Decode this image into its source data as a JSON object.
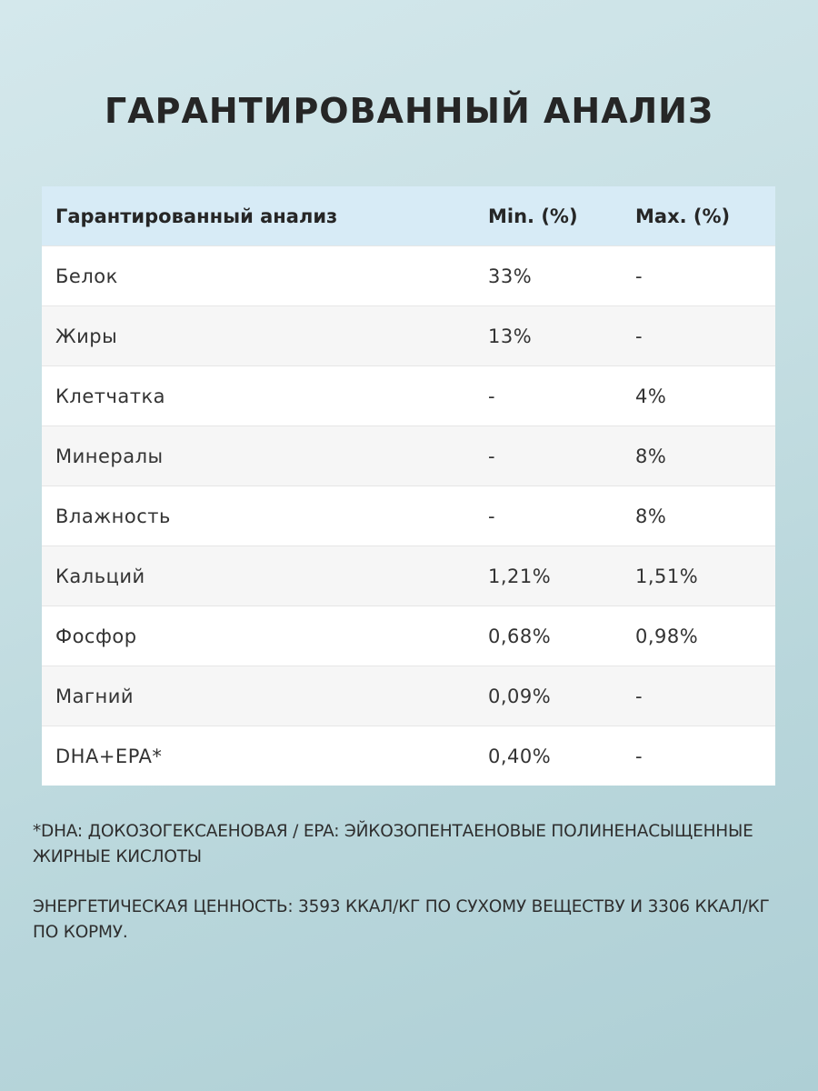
{
  "title": "ГАРАНТИРОВАННЫЙ АНАЛИЗ",
  "table": {
    "headers": [
      "Гарантированный анализ",
      "Min. (%)",
      "Max. (%)"
    ],
    "rows": [
      {
        "name": "Белок",
        "min": "33%",
        "max": "-"
      },
      {
        "name": "Жиры",
        "min": "13%",
        "max": "-"
      },
      {
        "name": "Клетчатка",
        "min": "-",
        "max": "4%"
      },
      {
        "name": "Минералы",
        "min": "-",
        "max": "8%"
      },
      {
        "name": "Влажность",
        "min": "-",
        "max": "8%"
      },
      {
        "name": "Кальций",
        "min": "1,21%",
        "max": "1,51%"
      },
      {
        "name": "Фосфор",
        "min": "0,68%",
        "max": "0,98%"
      },
      {
        "name": "Магний",
        "min": "0,09%",
        "max": "-"
      },
      {
        "name": "DHA+EPA*",
        "min": "0,40%",
        "max": "-"
      }
    ]
  },
  "footnotes": {
    "dha_epa": "*DHA: ДОКОЗОГЕКСАЕНОВАЯ / EPA: ЭЙКОЗОПЕНТАЕНОВЫЕ ПОЛИНЕНАСЫЩЕННЫЕ ЖИРНЫЕ КИСЛОТЫ",
    "energy": "ЭНЕРГЕТИЧЕСКАЯ ЦЕННОСТЬ: 3593 ККАЛ/КГ ПО СУХОМУ ВЕЩЕСТВУ И 3306 ККАЛ/КГ ПО КОРМУ."
  },
  "colors": {
    "header_bg": "#d7ebf6",
    "row_alt_bg": "#f6f6f6",
    "page_bg": "#c8e0e4"
  }
}
